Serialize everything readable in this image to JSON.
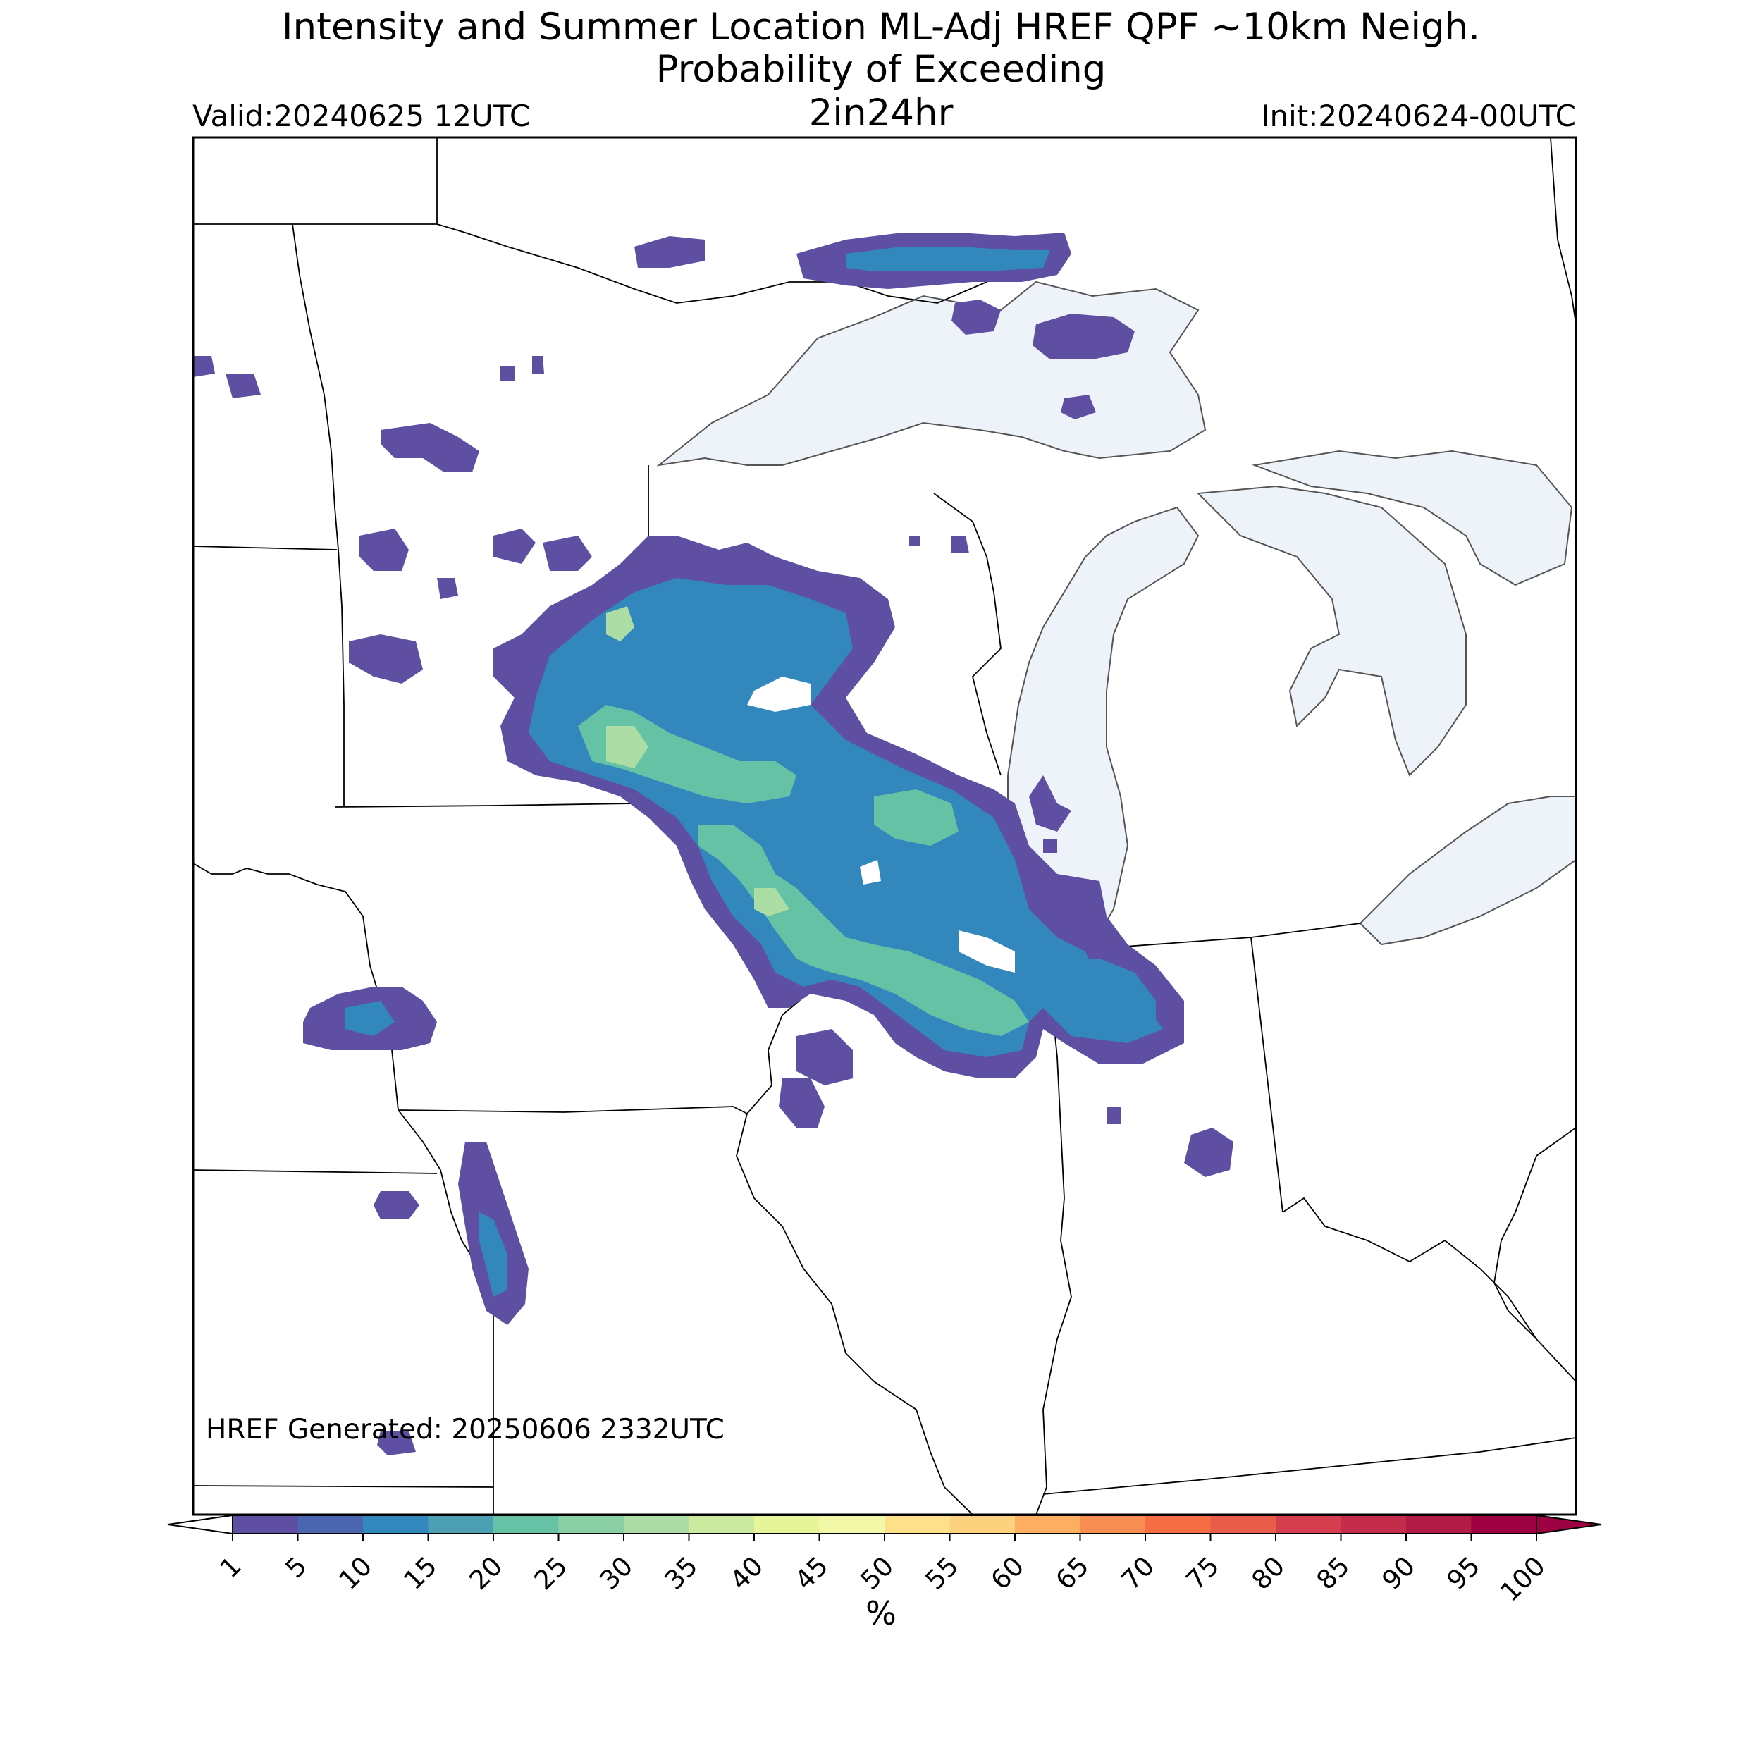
{
  "header": {
    "title_line1": "Intensity and Summer Location ML-Adj HREF QPF ~10km Neigh.",
    "title_line2": "Probability of Exceeding",
    "threshold": "2in24hr",
    "valid": "Valid:20240625 12UTC",
    "init": "Init:20240624-00UTC"
  },
  "map": {
    "generated": "HREF Generated: 20250606 2332UTC",
    "water_color": "#eef2f9",
    "outline_color": "#000000"
  },
  "colorbar": {
    "unit": "%",
    "ticks": [
      "1",
      "5",
      "10",
      "15",
      "20",
      "25",
      "30",
      "35",
      "40",
      "45",
      "50",
      "55",
      "60",
      "65",
      "70",
      "75",
      "80",
      "85",
      "90",
      "95",
      "100"
    ],
    "colors": [
      "#5e4fa2",
      "#4a66b0",
      "#3288bd",
      "#4ca0b1",
      "#66c2a5",
      "#8ad0a4",
      "#abdda4",
      "#cbeaa0",
      "#e6f598",
      "#f1f9a9",
      "#fee08b",
      "#fdd27f",
      "#fdae61",
      "#f98e52",
      "#f46d43",
      "#e85c4a",
      "#d53e4f",
      "#c42c4b",
      "#b01c46",
      "#9e0142"
    ],
    "under_color": "#ffffff",
    "over_color": "#9e0142"
  }
}
